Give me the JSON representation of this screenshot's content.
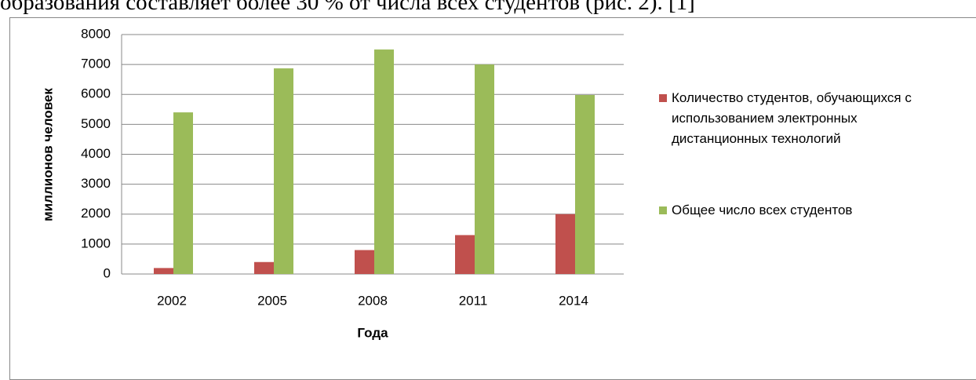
{
  "text_above": "образования составляет более 30 % от числа всех студентов (рис. 2). [1]",
  "chart_data": {
    "type": "bar",
    "categories": [
      "2002",
      "2005",
      "2008",
      "2011",
      "2014"
    ],
    "series": [
      {
        "name": "Количество студентов, обучающихся с использованием электронных дистанционных технологий",
        "color": "#c0504d",
        "values": [
          200,
          400,
          800,
          1300,
          2000
        ]
      },
      {
        "name": "Общее число всех студентов",
        "color": "#9bbb59",
        "values": [
          5400,
          6870,
          7500,
          7000,
          5980
        ]
      }
    ],
    "ylim": [
      0,
      8000
    ],
    "yticks": [
      0,
      1000,
      2000,
      3000,
      4000,
      5000,
      6000,
      7000,
      8000
    ],
    "y_label": "миллионов человек",
    "x_label": "Года",
    "grid": true,
    "legend": "right"
  }
}
